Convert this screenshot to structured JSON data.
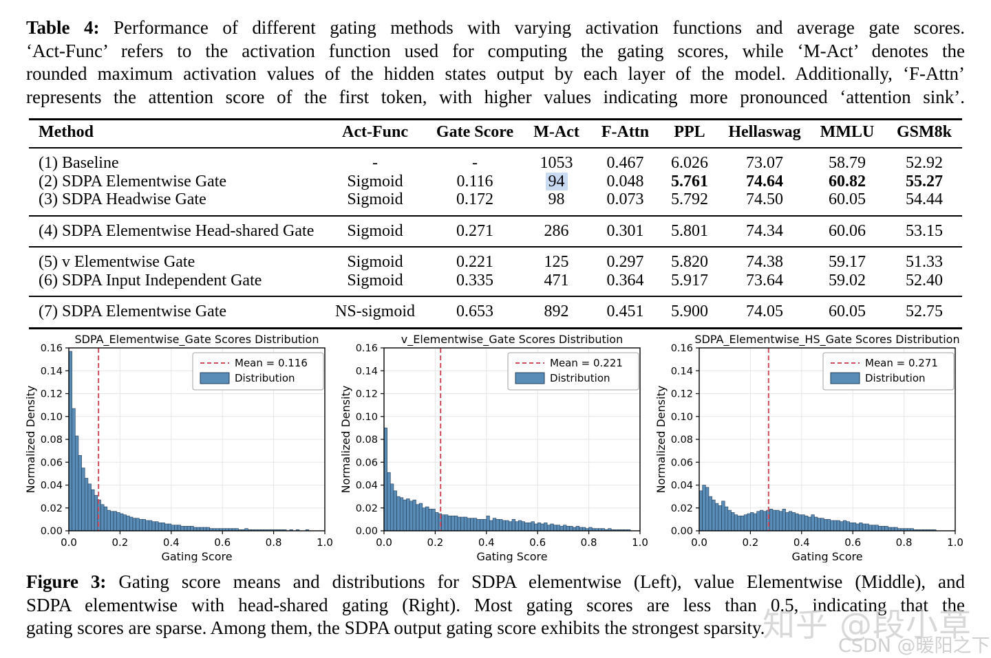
{
  "table_caption": {
    "label": "Table 4:",
    "justify_last": true,
    "lines": [
      "Performance of different gating methods with varying activation functions and average gate scores.",
      "‘Act-Func’ refers to the activation function used for computing the gating scores, while ‘M-Act’ denotes the",
      "rounded maximum activation values of the hidden states output by each layer of the model. Additionally, ‘F-Attn’",
      "represents the attention score of the first token, with higher values indicating more pronounced ‘attention sink’."
    ]
  },
  "figure_caption": {
    "label": "Figure 3:",
    "justify_last": false,
    "lines": [
      "Gating score means and distributions for SDPA elementwise (Left), value Elementwise (Middle), and",
      "SDPA elementwise with head-shared gating (Right). Most gating scores are less than 0.5, indicating that the",
      "gating scores are sparse. Among them, the SDPA output gating score exhibits the strongest sparsity."
    ]
  },
  "table": {
    "columns": [
      "Method",
      "Act-Func",
      "Gate Score",
      "M-Act",
      "F-Attn",
      "PPL",
      "Hellaswag",
      "MMLU",
      "GSM8k"
    ],
    "highlight_color": "#c9daf3",
    "groups": [
      {
        "rows": [
          {
            "cells": [
              "(1) Baseline",
              "-",
              "-",
              "1053",
              "0.467",
              "6.026",
              "73.07",
              "58.79",
              "52.92"
            ]
          },
          {
            "cells": [
              "(2) SDPA Elementwise Gate",
              "Sigmoid",
              "0.116",
              "94",
              "0.048",
              "5.761",
              "74.64",
              "60.82",
              "55.27"
            ],
            "bold": [
              5,
              6,
              7,
              8
            ],
            "highlight": [
              3
            ]
          },
          {
            "cells": [
              "(3) SDPA Headwise Gate",
              "Sigmoid",
              "0.172",
              "98",
              "0.073",
              "5.792",
              "74.50",
              "60.05",
              "54.44"
            ]
          }
        ]
      },
      {
        "rows": [
          {
            "cells": [
              "(4) SDPA Elementwise Head-shared Gate",
              "Sigmoid",
              "0.271",
              "286",
              "0.301",
              "5.801",
              "74.34",
              "60.06",
              "53.15"
            ]
          }
        ]
      },
      {
        "rows": [
          {
            "cells": [
              "(5) v Elementwise Gate",
              "Sigmoid",
              "0.221",
              "125",
              "0.297",
              "5.820",
              "74.38",
              "59.17",
              "51.33"
            ]
          },
          {
            "cells": [
              "(6) SDPA Input Independent Gate",
              "Sigmoid",
              "0.335",
              "471",
              "0.364",
              "5.917",
              "73.64",
              "59.02",
              "52.40"
            ]
          }
        ]
      },
      {
        "rows": [
          {
            "cells": [
              "(7) SDPA Elementwise Gate",
              "NS-sigmoid",
              "0.653",
              "892",
              "0.451",
              "5.900",
              "74.05",
              "60.05",
              "52.75"
            ]
          }
        ]
      }
    ]
  },
  "watermarks": [
    {
      "text": "知乎 @段小草"
    },
    {
      "text": "CSDN @暖阳之下"
    }
  ],
  "chart_style": {
    "bar_color": "#5a8cb8",
    "bar_edge": "#1f3b55",
    "mean_color": "#d04a5a",
    "grid_color": "#e6e6e6",
    "spine_color": "#000000",
    "legend_border": "#a0a0a0"
  },
  "chart_data": [
    {
      "type": "bar",
      "title": "SDPA_Elementwise_Gate Scores Distribution",
      "xlabel": "Gating Score",
      "ylabel": "Normalized Density",
      "xlim": [
        0.0,
        1.0
      ],
      "ylim": [
        0.0,
        0.16
      ],
      "xticks": [
        0.0,
        0.2,
        0.4,
        0.6,
        0.8,
        1.0
      ],
      "yticks": [
        0.0,
        0.02,
        0.04,
        0.06,
        0.08,
        0.1,
        0.12,
        0.14,
        0.16
      ],
      "grid": true,
      "legend_position": "upper-right",
      "mean": 0.116,
      "mean_label": "Mean = 0.116",
      "dist_label": "Distribution",
      "bin_width": 0.0125,
      "x_start": 0.0,
      "values": [
        0.157,
        0.107,
        0.083,
        0.066,
        0.055,
        0.046,
        0.041,
        0.036,
        0.031,
        0.027,
        0.023,
        0.021,
        0.018,
        0.017,
        0.017,
        0.016,
        0.015,
        0.014,
        0.013,
        0.012,
        0.011,
        0.011,
        0.01,
        0.01,
        0.009,
        0.009,
        0.008,
        0.008,
        0.007,
        0.007,
        0.006,
        0.006,
        0.005,
        0.005,
        0.005,
        0.004,
        0.004,
        0.004,
        0.004,
        0.003,
        0.003,
        0.003,
        0.003,
        0.003,
        0.002,
        0.002,
        0.002,
        0.002,
        0.002,
        0.002,
        0.002,
        0.002,
        0.002,
        0.001,
        0.001,
        0.002,
        0.001,
        0.001,
        0.001,
        0.001,
        0.001,
        0.001,
        0.001,
        0.001,
        0.001,
        0.001,
        0.001,
        0.001,
        0.0,
        0.001,
        0.0,
        0.001,
        0.0,
        0.0,
        0.001,
        0.0,
        0.0,
        0.0,
        0.0,
        0.0
      ]
    },
    {
      "type": "bar",
      "title": "v_Elementwise_Gate Scores Distribution",
      "xlabel": "Gating Score",
      "ylabel": "Normalized Density",
      "xlim": [
        0.0,
        1.0
      ],
      "ylim": [
        0.0,
        0.16
      ],
      "xticks": [
        0.0,
        0.2,
        0.4,
        0.6,
        0.8,
        1.0
      ],
      "yticks": [
        0.0,
        0.02,
        0.04,
        0.06,
        0.08,
        0.1,
        0.12,
        0.14,
        0.16
      ],
      "grid": true,
      "legend_position": "upper-right",
      "mean": 0.221,
      "mean_label": "Mean = 0.221",
      "dist_label": "Distribution",
      "bin_width": 0.0125,
      "x_start": 0.0,
      "values": [
        0.09,
        0.051,
        0.041,
        0.035,
        0.03,
        0.029,
        0.027,
        0.028,
        0.026,
        0.027,
        0.023,
        0.024,
        0.02,
        0.021,
        0.019,
        0.019,
        0.016,
        0.015,
        0.014,
        0.014,
        0.013,
        0.013,
        0.013,
        0.012,
        0.012,
        0.012,
        0.011,
        0.011,
        0.011,
        0.01,
        0.01,
        0.01,
        0.013,
        0.009,
        0.011,
        0.01,
        0.01,
        0.009,
        0.009,
        0.008,
        0.01,
        0.008,
        0.009,
        0.008,
        0.007,
        0.007,
        0.008,
        0.006,
        0.007,
        0.006,
        0.007,
        0.005,
        0.006,
        0.005,
        0.005,
        0.004,
        0.005,
        0.004,
        0.004,
        0.003,
        0.004,
        0.003,
        0.003,
        0.002,
        0.003,
        0.002,
        0.002,
        0.002,
        0.002,
        0.001,
        0.002,
        0.001,
        0.001,
        0.001,
        0.001,
        0.001,
        0.001,
        0.0,
        0.0,
        0.0
      ]
    },
    {
      "type": "bar",
      "title": "SDPA_Elementwise_HS_Gate Scores Distribution",
      "xlabel": "Gating Score",
      "ylabel": "Normalized Density",
      "xlim": [
        0.0,
        1.0
      ],
      "ylim": [
        0.0,
        0.16
      ],
      "xticks": [
        0.0,
        0.2,
        0.4,
        0.6,
        0.8,
        1.0
      ],
      "yticks": [
        0.0,
        0.02,
        0.04,
        0.06,
        0.08,
        0.1,
        0.12,
        0.14,
        0.16
      ],
      "grid": true,
      "legend_position": "upper-right",
      "mean": 0.271,
      "mean_label": "Mean = 0.271",
      "dist_label": "Distribution",
      "bin_width": 0.0125,
      "x_start": 0.0,
      "values": [
        0.035,
        0.04,
        0.038,
        0.03,
        0.027,
        0.024,
        0.022,
        0.026,
        0.021,
        0.018,
        0.016,
        0.014,
        0.013,
        0.013,
        0.014,
        0.015,
        0.016,
        0.015,
        0.017,
        0.018,
        0.017,
        0.018,
        0.019,
        0.018,
        0.018,
        0.017,
        0.019,
        0.016,
        0.017,
        0.016,
        0.015,
        0.014,
        0.014,
        0.013,
        0.012,
        0.014,
        0.012,
        0.011,
        0.011,
        0.01,
        0.01,
        0.009,
        0.009,
        0.009,
        0.008,
        0.009,
        0.008,
        0.007,
        0.007,
        0.006,
        0.007,
        0.006,
        0.006,
        0.005,
        0.005,
        0.005,
        0.004,
        0.004,
        0.004,
        0.003,
        0.003,
        0.003,
        0.002,
        0.002,
        0.002,
        0.002,
        0.002,
        0.001,
        0.001,
        0.001,
        0.001,
        0.001,
        0.001,
        0.001,
        0.0,
        0.0,
        0.0,
        0.0,
        0.0,
        0.0
      ]
    }
  ]
}
